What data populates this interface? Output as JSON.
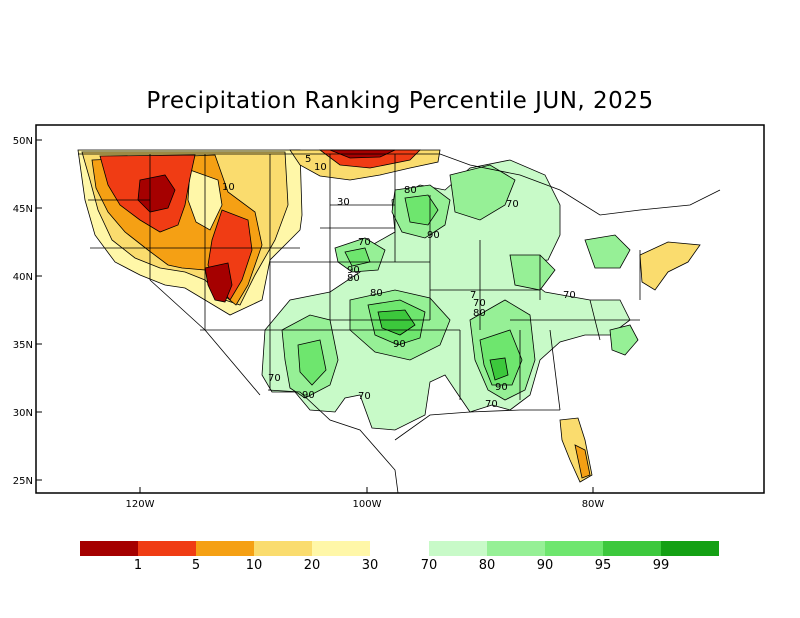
{
  "title": "Precipitation Ranking Percentile JUN, 2025",
  "axes": {
    "lat_ticks": [
      "50N",
      "45N",
      "40N",
      "35N",
      "30N",
      "25N"
    ],
    "lon_ticks": [
      "120W",
      "100W",
      "80W"
    ]
  },
  "contour_labels": [
    "5",
    "10",
    "10",
    "30",
    "80",
    "90",
    "70",
    "70",
    "90",
    "80",
    "80",
    "90",
    "70",
    "80",
    "7",
    "70",
    "90",
    "70",
    "90",
    "70",
    "70",
    "90"
  ],
  "legend": {
    "dry": [
      {
        "color": "#a50000"
      },
      {
        "color": "#f03c14"
      },
      {
        "color": "#f5a014"
      },
      {
        "color": "#fadc6e"
      },
      {
        "color": "#fff7a8"
      }
    ],
    "wet": [
      {
        "color": "#c8fac8"
      },
      {
        "color": "#96f096"
      },
      {
        "color": "#6ee66e"
      },
      {
        "color": "#3cc83c"
      },
      {
        "color": "#14a014"
      }
    ],
    "dry_labels": [
      "1",
      "5",
      "10",
      "20",
      "30"
    ],
    "wet_labels": [
      "70",
      "80",
      "90",
      "95",
      "99"
    ]
  }
}
